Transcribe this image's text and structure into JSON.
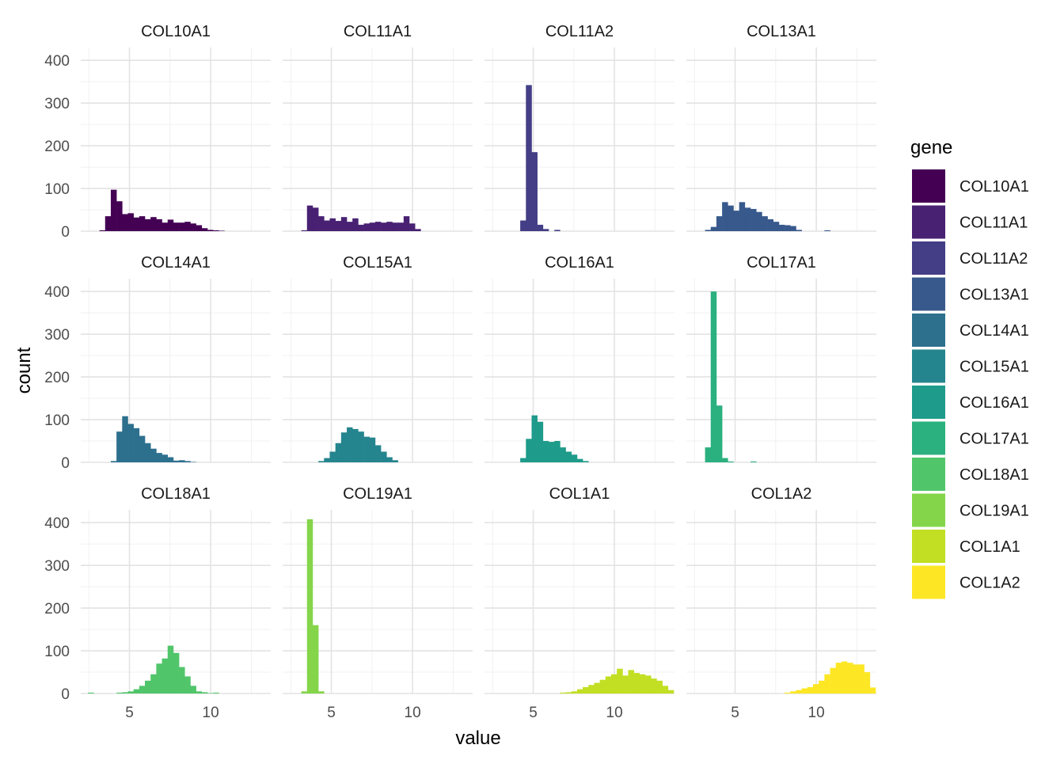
{
  "chart_data": {
    "type": "histogram",
    "layout": "facet_wrap 3x4",
    "xlabel": "value",
    "ylabel": "count",
    "xlim": [
      2,
      13.7
    ],
    "ylim": [
      0,
      430
    ],
    "xticks": [
      5,
      10
    ],
    "yticks": [
      0,
      100,
      200,
      300,
      400
    ],
    "bin_start": 2.45,
    "bin_width": 0.35,
    "legend": {
      "title": "gene",
      "position": "right",
      "entries": [
        {
          "label": "COL10A1",
          "color": "#440154"
        },
        {
          "label": "COL11A1",
          "color": "#482173"
        },
        {
          "label": "COL11A2",
          "color": "#433E85"
        },
        {
          "label": "COL13A1",
          "color": "#38598C"
        },
        {
          "label": "COL14A1",
          "color": "#2D708E"
        },
        {
          "label": "COL15A1",
          "color": "#25858E"
        },
        {
          "label": "COL16A1",
          "color": "#1E9B8A"
        },
        {
          "label": "COL17A1",
          "color": "#2BB07F"
        },
        {
          "label": "COL18A1",
          "color": "#51C56A"
        },
        {
          "label": "COL19A1",
          "color": "#85D54A"
        },
        {
          "label": "COL1A1",
          "color": "#C2DF23"
        },
        {
          "label": "COL1A2",
          "color": "#FDE725"
        }
      ]
    },
    "panels": [
      {
        "gene": "COL10A1",
        "counts": [
          0,
          0,
          2,
          35,
          97,
          70,
          40,
          42,
          32,
          35,
          28,
          33,
          28,
          20,
          27,
          20,
          20,
          22,
          18,
          14,
          7,
          3,
          2,
          1,
          0,
          0,
          0,
          0,
          0,
          0,
          0,
          0,
          0
        ]
      },
      {
        "gene": "COL11A1",
        "counts": [
          0,
          0,
          2,
          60,
          55,
          35,
          25,
          30,
          24,
          33,
          22,
          30,
          15,
          18,
          20,
          22,
          20,
          22,
          20,
          20,
          35,
          18,
          5,
          0,
          0,
          0,
          0,
          0,
          0,
          0,
          0,
          0,
          0
        ]
      },
      {
        "gene": "COL11A2",
        "counts": [
          0,
          0,
          0,
          0,
          0,
          25,
          342,
          185,
          15,
          5,
          0,
          3,
          0,
          0,
          0,
          0,
          0,
          0,
          0,
          0,
          0,
          0,
          0,
          0,
          0,
          0,
          0,
          0,
          0,
          0,
          0,
          0,
          0
        ]
      },
      {
        "gene": "COL13A1",
        "counts": [
          0,
          0,
          3,
          10,
          35,
          68,
          60,
          48,
          68,
          55,
          52,
          45,
          35,
          28,
          22,
          15,
          14,
          12,
          3,
          0,
          0,
          0,
          0,
          2,
          0,
          0,
          0,
          0,
          0,
          0,
          0,
          0,
          0
        ]
      },
      {
        "gene": "COL14A1",
        "counts": [
          0,
          0,
          0,
          0,
          3,
          72,
          108,
          90,
          80,
          62,
          45,
          32,
          22,
          18,
          12,
          4,
          5,
          3,
          1,
          0,
          0,
          0,
          0,
          0,
          0,
          0,
          0,
          0,
          0,
          0,
          0,
          0,
          0
        ]
      },
      {
        "gene": "COL15A1",
        "counts": [
          0,
          0,
          0,
          0,
          0,
          3,
          10,
          25,
          45,
          70,
          82,
          78,
          72,
          60,
          58,
          40,
          25,
          12,
          5,
          0,
          0,
          0,
          0,
          0,
          0,
          0,
          0,
          0,
          0,
          0,
          0,
          0,
          0
        ]
      },
      {
        "gene": "COL16A1",
        "counts": [
          0,
          0,
          0,
          0,
          0,
          10,
          55,
          110,
          95,
          50,
          48,
          50,
          35,
          25,
          18,
          8,
          3,
          0,
          0,
          0,
          0,
          0,
          0,
          0,
          0,
          0,
          0,
          0,
          0,
          0,
          0,
          0,
          0
        ]
      },
      {
        "gene": "COL17A1",
        "counts": [
          0,
          0,
          35,
          400,
          133,
          10,
          2,
          0,
          0,
          0,
          2,
          0,
          0,
          0,
          0,
          0,
          0,
          0,
          0,
          0,
          0,
          0,
          0,
          0,
          0,
          0,
          0,
          0,
          0,
          0,
          0,
          0,
          0
        ]
      },
      {
        "gene": "COL18A1",
        "counts": [
          2,
          0,
          0,
          0,
          0,
          2,
          3,
          5,
          10,
          18,
          30,
          45,
          70,
          82,
          112,
          95,
          62,
          40,
          18,
          5,
          3,
          1,
          2,
          0,
          0,
          0,
          0,
          0,
          0,
          0,
          0,
          0,
          0
        ]
      },
      {
        "gene": "COL19A1",
        "counts": [
          0,
          0,
          5,
          408,
          160,
          5,
          0,
          0,
          0,
          0,
          0,
          0,
          0,
          0,
          0,
          0,
          0,
          0,
          0,
          0,
          0,
          0,
          0,
          0,
          0,
          0,
          0,
          0,
          0,
          0,
          0,
          0,
          0
        ]
      },
      {
        "gene": "COL1A1",
        "counts": [
          0,
          0,
          0,
          0,
          0,
          0,
          0,
          0,
          0,
          0,
          0,
          0,
          2,
          3,
          5,
          10,
          15,
          20,
          25,
          32,
          40,
          45,
          58,
          42,
          55,
          48,
          45,
          42,
          35,
          30,
          18,
          8,
          0
        ]
      },
      {
        "gene": "COL1A2",
        "counts": [
          0,
          0,
          0,
          0,
          0,
          0,
          0,
          0,
          0,
          0,
          0,
          0,
          0,
          0,
          0,
          0,
          2,
          5,
          8,
          12,
          15,
          22,
          30,
          45,
          60,
          72,
          75,
          72,
          68,
          68,
          50,
          14,
          0
        ]
      }
    ]
  }
}
